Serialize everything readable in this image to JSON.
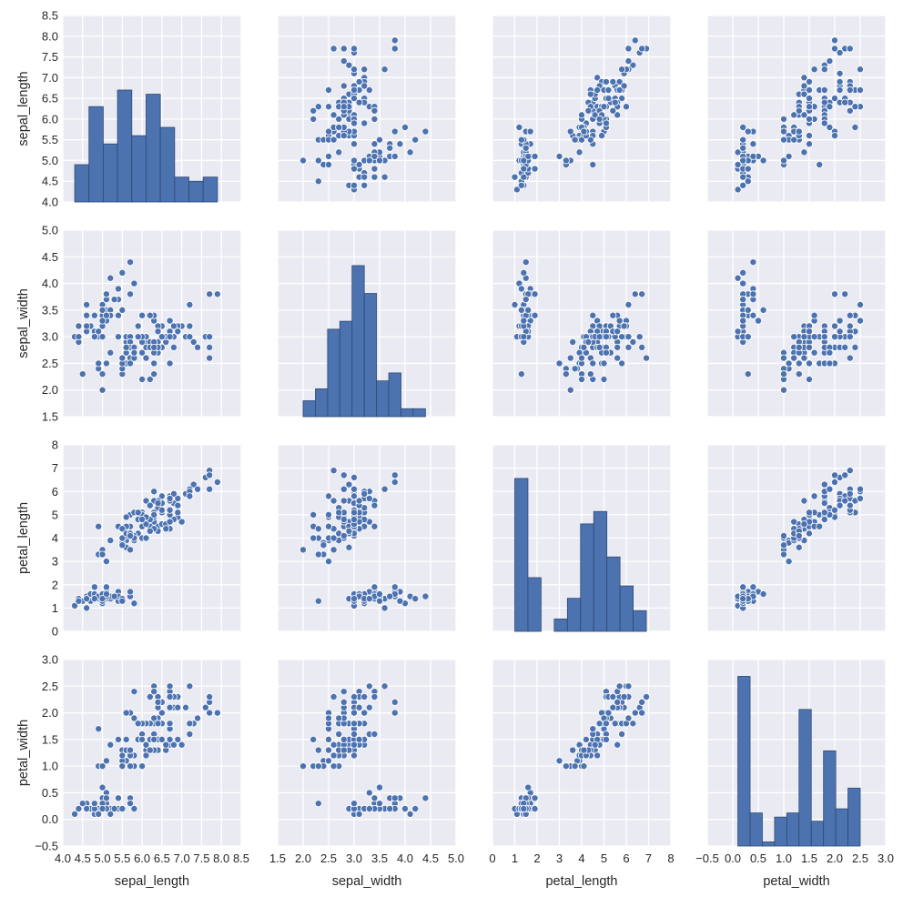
{
  "chart_data": {
    "type": "scatter",
    "title": "",
    "variables": [
      "sepal_length",
      "sepal_width",
      "petal_length",
      "petal_width"
    ],
    "axis_ranges": {
      "sepal_length": [
        4.0,
        8.5
      ],
      "sepal_width": [
        1.5,
        5.0
      ],
      "petal_length": [
        0,
        8
      ],
      "petal_width": [
        -0.5,
        3.0
      ]
    },
    "ticks": {
      "sepal_length": [
        "4.0",
        "4.5",
        "5.0",
        "5.5",
        "6.0",
        "6.5",
        "7.0",
        "7.5",
        "8.0",
        "8.5"
      ],
      "sepal_width": [
        "1.5",
        "2.0",
        "2.5",
        "3.0",
        "3.5",
        "4.0",
        "4.5",
        "5.0"
      ],
      "petal_length": [
        "0",
        "1",
        "2",
        "3",
        "4",
        "5",
        "6",
        "7",
        "8"
      ],
      "petal_width": [
        "−0.5",
        "0.0",
        "0.5",
        "1.0",
        "1.5",
        "2.0",
        "2.5",
        "3.0"
      ]
    },
    "tick_values": {
      "sepal_length": [
        4.0,
        4.5,
        5.0,
        5.5,
        6.0,
        6.5,
        7.0,
        7.5,
        8.0,
        8.5
      ],
      "sepal_width": [
        1.5,
        2.0,
        2.5,
        3.0,
        3.5,
        4.0,
        4.5,
        5.0
      ],
      "petal_length": [
        0,
        1,
        2,
        3,
        4,
        5,
        6,
        7,
        8
      ],
      "petal_width": [
        -0.5,
        0.0,
        0.5,
        1.0,
        1.5,
        2.0,
        2.5,
        3.0
      ]
    },
    "diagonal": "histogram",
    "hist_bins": 10,
    "grid": true,
    "colors": {
      "marker": "#4C72B0",
      "background": "#EAEAF2",
      "grid": "#FFFFFF",
      "bar_edge": "#2E4A73"
    },
    "rows": [
      [
        5.1,
        3.5,
        1.4,
        0.2
      ],
      [
        4.9,
        3.0,
        1.4,
        0.2
      ],
      [
        4.7,
        3.2,
        1.3,
        0.2
      ],
      [
        4.6,
        3.1,
        1.5,
        0.2
      ],
      [
        5.0,
        3.6,
        1.4,
        0.2
      ],
      [
        5.4,
        3.9,
        1.7,
        0.4
      ],
      [
        4.6,
        3.4,
        1.4,
        0.3
      ],
      [
        5.0,
        3.4,
        1.5,
        0.2
      ],
      [
        4.4,
        2.9,
        1.4,
        0.2
      ],
      [
        4.9,
        3.1,
        1.5,
        0.1
      ],
      [
        5.4,
        3.7,
        1.5,
        0.2
      ],
      [
        4.8,
        3.4,
        1.6,
        0.2
      ],
      [
        4.8,
        3.0,
        1.4,
        0.1
      ],
      [
        4.3,
        3.0,
        1.1,
        0.1
      ],
      [
        5.8,
        4.0,
        1.2,
        0.2
      ],
      [
        5.7,
        4.4,
        1.5,
        0.4
      ],
      [
        5.4,
        3.9,
        1.3,
        0.4
      ],
      [
        5.1,
        3.5,
        1.4,
        0.3
      ],
      [
        5.7,
        3.8,
        1.7,
        0.3
      ],
      [
        5.1,
        3.8,
        1.5,
        0.3
      ],
      [
        5.4,
        3.4,
        1.7,
        0.2
      ],
      [
        5.1,
        3.7,
        1.5,
        0.4
      ],
      [
        4.6,
        3.6,
        1.0,
        0.2
      ],
      [
        5.1,
        3.3,
        1.7,
        0.5
      ],
      [
        4.8,
        3.4,
        1.9,
        0.2
      ],
      [
        5.0,
        3.0,
        1.6,
        0.2
      ],
      [
        5.0,
        3.4,
        1.6,
        0.4
      ],
      [
        5.2,
        3.5,
        1.5,
        0.2
      ],
      [
        5.2,
        3.4,
        1.4,
        0.2
      ],
      [
        4.7,
        3.2,
        1.6,
        0.2
      ],
      [
        4.8,
        3.1,
        1.6,
        0.2
      ],
      [
        5.4,
        3.4,
        1.5,
        0.4
      ],
      [
        5.2,
        4.1,
        1.5,
        0.1
      ],
      [
        5.5,
        4.2,
        1.4,
        0.2
      ],
      [
        4.9,
        3.1,
        1.5,
        0.1
      ],
      [
        5.0,
        3.2,
        1.2,
        0.2
      ],
      [
        5.5,
        3.5,
        1.3,
        0.2
      ],
      [
        4.9,
        3.1,
        1.5,
        0.1
      ],
      [
        4.4,
        3.0,
        1.3,
        0.2
      ],
      [
        5.1,
        3.4,
        1.5,
        0.2
      ],
      [
        5.0,
        3.5,
        1.3,
        0.3
      ],
      [
        4.5,
        2.3,
        1.3,
        0.3
      ],
      [
        4.4,
        3.2,
        1.3,
        0.2
      ],
      [
        5.0,
        3.5,
        1.6,
        0.6
      ],
      [
        5.1,
        3.8,
        1.9,
        0.4
      ],
      [
        4.8,
        3.0,
        1.4,
        0.3
      ],
      [
        5.1,
        3.8,
        1.6,
        0.2
      ],
      [
        4.6,
        3.2,
        1.4,
        0.2
      ],
      [
        5.3,
        3.7,
        1.5,
        0.2
      ],
      [
        5.0,
        3.3,
        1.4,
        0.2
      ],
      [
        7.0,
        3.2,
        4.7,
        1.4
      ],
      [
        6.4,
        3.2,
        4.5,
        1.5
      ],
      [
        6.9,
        3.1,
        4.9,
        1.5
      ],
      [
        5.5,
        2.3,
        4.0,
        1.3
      ],
      [
        6.5,
        2.8,
        4.6,
        1.5
      ],
      [
        5.7,
        2.8,
        4.5,
        1.3
      ],
      [
        6.3,
        3.3,
        4.7,
        1.6
      ],
      [
        4.9,
        2.4,
        3.3,
        1.0
      ],
      [
        6.6,
        2.9,
        4.6,
        1.3
      ],
      [
        5.2,
        2.7,
        3.9,
        1.4
      ],
      [
        5.0,
        2.0,
        3.5,
        1.0
      ],
      [
        5.9,
        3.0,
        4.2,
        1.5
      ],
      [
        6.0,
        2.2,
        4.0,
        1.0
      ],
      [
        6.1,
        2.9,
        4.7,
        1.4
      ],
      [
        5.6,
        2.9,
        3.6,
        1.3
      ],
      [
        6.7,
        3.1,
        4.4,
        1.4
      ],
      [
        5.6,
        3.0,
        4.5,
        1.5
      ],
      [
        5.8,
        2.7,
        4.1,
        1.0
      ],
      [
        6.2,
        2.2,
        4.5,
        1.5
      ],
      [
        5.6,
        2.5,
        3.9,
        1.1
      ],
      [
        5.9,
        3.2,
        4.8,
        1.8
      ],
      [
        6.1,
        2.8,
        4.0,
        1.3
      ],
      [
        6.3,
        2.5,
        4.9,
        1.5
      ],
      [
        6.1,
        2.8,
        4.7,
        1.2
      ],
      [
        6.4,
        2.9,
        4.3,
        1.3
      ],
      [
        6.6,
        3.0,
        4.4,
        1.4
      ],
      [
        6.8,
        2.8,
        4.8,
        1.4
      ],
      [
        6.7,
        3.0,
        5.0,
        1.7
      ],
      [
        6.0,
        2.9,
        4.5,
        1.5
      ],
      [
        5.7,
        2.6,
        3.5,
        1.0
      ],
      [
        5.5,
        2.4,
        3.8,
        1.1
      ],
      [
        5.5,
        2.4,
        3.7,
        1.0
      ],
      [
        5.8,
        2.7,
        3.9,
        1.2
      ],
      [
        6.0,
        2.7,
        5.1,
        1.6
      ],
      [
        5.4,
        3.0,
        4.5,
        1.5
      ],
      [
        6.0,
        3.4,
        4.5,
        1.6
      ],
      [
        6.7,
        3.1,
        4.7,
        1.5
      ],
      [
        6.3,
        2.3,
        4.4,
        1.3
      ],
      [
        5.6,
        3.0,
        4.1,
        1.3
      ],
      [
        5.5,
        2.5,
        4.0,
        1.3
      ],
      [
        5.5,
        2.6,
        4.4,
        1.2
      ],
      [
        6.1,
        3.0,
        4.6,
        1.4
      ],
      [
        5.8,
        2.6,
        4.0,
        1.2
      ],
      [
        5.0,
        2.3,
        3.3,
        1.0
      ],
      [
        5.6,
        2.7,
        4.2,
        1.3
      ],
      [
        5.7,
        3.0,
        4.2,
        1.2
      ],
      [
        5.7,
        2.9,
        4.2,
        1.3
      ],
      [
        6.2,
        2.9,
        4.3,
        1.3
      ],
      [
        5.1,
        2.5,
        3.0,
        1.1
      ],
      [
        5.7,
        2.8,
        4.1,
        1.3
      ],
      [
        6.3,
        3.3,
        6.0,
        2.5
      ],
      [
        5.8,
        2.7,
        5.1,
        1.9
      ],
      [
        7.1,
        3.0,
        5.9,
        2.1
      ],
      [
        6.3,
        2.9,
        5.6,
        1.8
      ],
      [
        6.5,
        3.0,
        5.8,
        2.2
      ],
      [
        7.6,
        3.0,
        6.6,
        2.1
      ],
      [
        4.9,
        2.5,
        4.5,
        1.7
      ],
      [
        7.3,
        2.9,
        6.3,
        1.8
      ],
      [
        6.7,
        2.5,
        5.8,
        1.8
      ],
      [
        7.2,
        3.6,
        6.1,
        2.5
      ],
      [
        6.5,
        3.2,
        5.1,
        2.0
      ],
      [
        6.4,
        2.7,
        5.3,
        1.9
      ],
      [
        6.8,
        3.0,
        5.5,
        2.1
      ],
      [
        5.7,
        2.5,
        5.0,
        2.0
      ],
      [
        5.8,
        2.8,
        5.1,
        2.4
      ],
      [
        6.4,
        3.2,
        5.3,
        2.3
      ],
      [
        6.5,
        3.0,
        5.5,
        1.8
      ],
      [
        7.7,
        3.8,
        6.7,
        2.2
      ],
      [
        7.7,
        2.6,
        6.9,
        2.3
      ],
      [
        6.0,
        2.2,
        5.0,
        1.5
      ],
      [
        6.9,
        3.2,
        5.7,
        2.3
      ],
      [
        5.6,
        2.8,
        4.9,
        2.0
      ],
      [
        7.7,
        2.8,
        6.7,
        2.0
      ],
      [
        6.3,
        2.7,
        4.9,
        1.8
      ],
      [
        6.7,
        3.3,
        5.7,
        2.1
      ],
      [
        7.2,
        3.2,
        6.0,
        1.8
      ],
      [
        6.2,
        2.8,
        4.8,
        1.8
      ],
      [
        6.1,
        3.0,
        4.9,
        1.8
      ],
      [
        6.4,
        2.8,
        5.6,
        2.1
      ],
      [
        7.2,
        3.0,
        5.8,
        1.6
      ],
      [
        7.4,
        2.8,
        6.1,
        1.9
      ],
      [
        7.9,
        3.8,
        6.4,
        2.0
      ],
      [
        6.4,
        2.8,
        5.6,
        2.2
      ],
      [
        6.3,
        2.8,
        5.1,
        1.5
      ],
      [
        6.1,
        2.6,
        5.6,
        1.4
      ],
      [
        7.7,
        3.0,
        6.1,
        2.3
      ],
      [
        6.3,
        3.4,
        5.6,
        2.4
      ],
      [
        6.4,
        3.1,
        5.5,
        1.8
      ],
      [
        6.0,
        3.0,
        4.8,
        1.8
      ],
      [
        6.9,
        3.1,
        5.4,
        2.1
      ],
      [
        6.7,
        3.1,
        5.6,
        2.4
      ],
      [
        6.9,
        3.1,
        5.1,
        2.3
      ],
      [
        5.8,
        2.7,
        5.1,
        1.9
      ],
      [
        6.8,
        3.2,
        5.9,
        2.3
      ],
      [
        6.7,
        3.3,
        5.7,
        2.5
      ],
      [
        6.7,
        3.0,
        5.2,
        2.3
      ],
      [
        6.3,
        2.5,
        5.0,
        1.9
      ],
      [
        6.5,
        3.0,
        5.2,
        2.0
      ],
      [
        6.2,
        3.4,
        5.4,
        2.3
      ],
      [
        5.9,
        3.0,
        5.1,
        1.8
      ]
    ]
  }
}
